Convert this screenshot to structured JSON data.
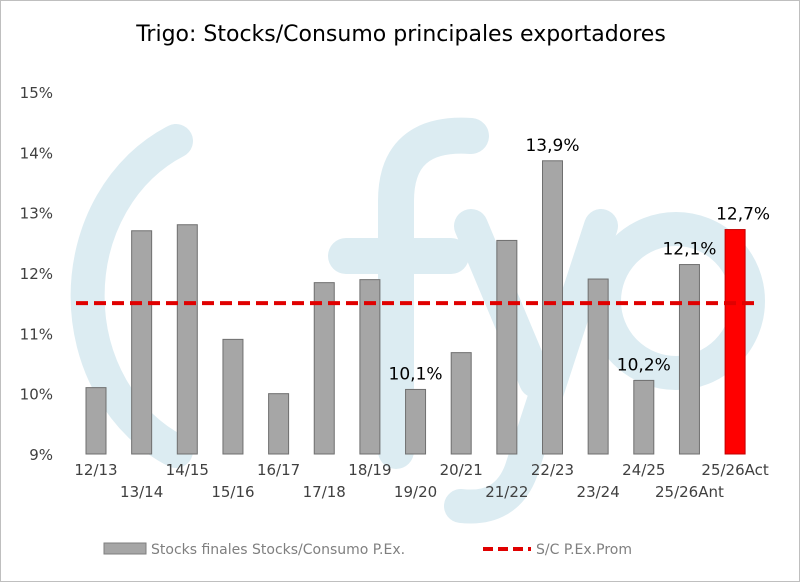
{
  "chart_data": {
    "type": "bar",
    "title": "Trigo: Stocks/Consumo principales exportadores",
    "watermark": "fyo",
    "categories": [
      "12/13",
      "13/14",
      "14/15",
      "15/16",
      "16/17",
      "17/18",
      "18/19",
      "19/20",
      "20/21",
      "21/22",
      "22/23",
      "23/24",
      "24/25",
      "25/26Ant",
      "25/26Act"
    ],
    "series": [
      {
        "name": "Stocks finales Stocks/Consumo P.Ex.",
        "type": "bar",
        "values": [
          10.1,
          12.7,
          12.8,
          10.9,
          10.0,
          11.84,
          11.89,
          10.07,
          10.68,
          12.54,
          13.86,
          11.9,
          10.22,
          12.14,
          12.72
        ],
        "colors": [
          "#a6a6a6",
          "#a6a6a6",
          "#a6a6a6",
          "#a6a6a6",
          "#a6a6a6",
          "#a6a6a6",
          "#a6a6a6",
          "#a6a6a6",
          "#a6a6a6",
          "#a6a6a6",
          "#a6a6a6",
          "#a6a6a6",
          "#a6a6a6",
          "#a6a6a6",
          "#ff0000"
        ]
      },
      {
        "name": "S/C P.Ex.Prom",
        "type": "line",
        "style": "dashed",
        "color": "#e00000",
        "value": 11.5
      }
    ],
    "data_labels": [
      null,
      null,
      null,
      null,
      null,
      null,
      null,
      "10,1%",
      null,
      null,
      "13,9%",
      null,
      "10,2%",
      "12,1%",
      "12,7%"
    ],
    "ylim": [
      9,
      15
    ],
    "yticks": [
      "9%",
      "10%",
      "11%",
      "12%",
      "13%",
      "14%",
      "15%"
    ],
    "xlabel": "",
    "ylabel": "",
    "grid": false,
    "legend": "bottom"
  }
}
